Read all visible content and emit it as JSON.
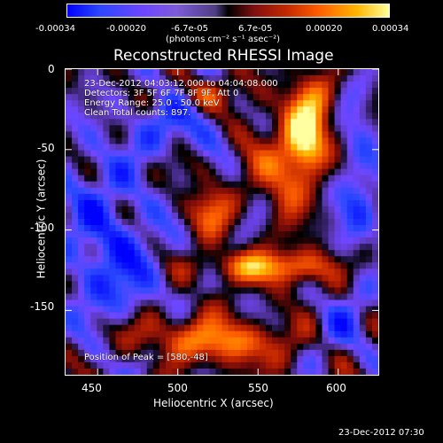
{
  "chart_data": {
    "type": "heatmap",
    "title": "Reconstructed RHESSI Image",
    "xlabel": "Heliocentric X (arcsec)",
    "ylabel": "Heliocentric Y (arcsec)",
    "xlim": [
      430,
      625
    ],
    "ylim": [
      -190,
      0
    ],
    "x_ticks": [
      450,
      500,
      550,
      600
    ],
    "y_ticks": [
      0,
      -50,
      -100,
      -150
    ],
    "colorbar": {
      "ticks": [
        "-0.00034",
        "-0.00020",
        "-6.7e-05",
        "6.7e-05",
        "0.00020",
        "0.00034"
      ],
      "unit": "(photons cm⁻² s⁻¹ asec⁻²)"
    },
    "annotations": {
      "time_range": "23-Dec-2012 04:03:12.000 to 04:04:08.000",
      "detectors": "Detectors: 3F 5F 6F 7F 8F 9F, Att 0",
      "energy_range": "Energy Range: 25.0 - 50.0 keV",
      "clean_counts": "Clean     Total counts: 897.",
      "peak_position": "Position of Peak = [580,-48]"
    },
    "peak_position": [
      580,
      -48
    ],
    "features": [
      {
        "name": "central-bright-loop",
        "x": 580,
        "y": -48,
        "value": 0.00034
      },
      {
        "name": "upper-bright-lobe",
        "x": 515,
        "y": -15,
        "value": 0.00022
      },
      {
        "name": "left-central-bright",
        "x": 520,
        "y": -88,
        "value": 0.00024
      },
      {
        "name": "right-bright-strip",
        "x": 575,
        "y": -123,
        "value": 0.00024
      },
      {
        "name": "lower-bright-band",
        "x": 530,
        "y": -170,
        "value": 0.00026
      },
      {
        "name": "left-negative-region",
        "x": 460,
        "y": -125,
        "value": -0.0002
      },
      {
        "name": "upper-negative-region",
        "x": 500,
        "y": -35,
        "value": -0.00018
      },
      {
        "name": "right-negative-region",
        "x": 612,
        "y": -70,
        "value": -0.00016
      }
    ]
  },
  "footer": {
    "timestamp": "23-Dec-2012 07:30"
  }
}
